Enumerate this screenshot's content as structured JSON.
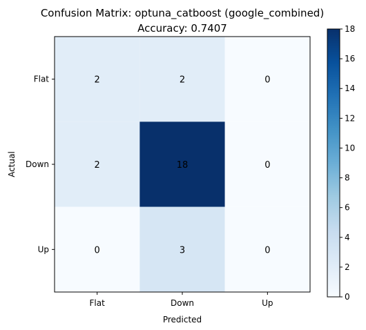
{
  "chart_data": {
    "type": "heatmap",
    "title": "Confusion Matrix: optuna_catboost (google_combined)",
    "subtitle": "Accuracy: 0.7407",
    "xlabel": "Predicted",
    "ylabel": "Actual",
    "x_categories": [
      "Flat",
      "Down",
      "Up"
    ],
    "y_categories": [
      "Flat",
      "Down",
      "Up"
    ],
    "matrix": [
      [
        2,
        2,
        0
      ],
      [
        2,
        18,
        0
      ],
      [
        0,
        3,
        0
      ]
    ],
    "colorbar": {
      "min": 0,
      "max": 18,
      "ticks": [
        "0",
        "2",
        "4",
        "6",
        "8",
        "10",
        "12",
        "14",
        "16",
        "18"
      ],
      "colormap": "Blues"
    },
    "grid": false
  }
}
